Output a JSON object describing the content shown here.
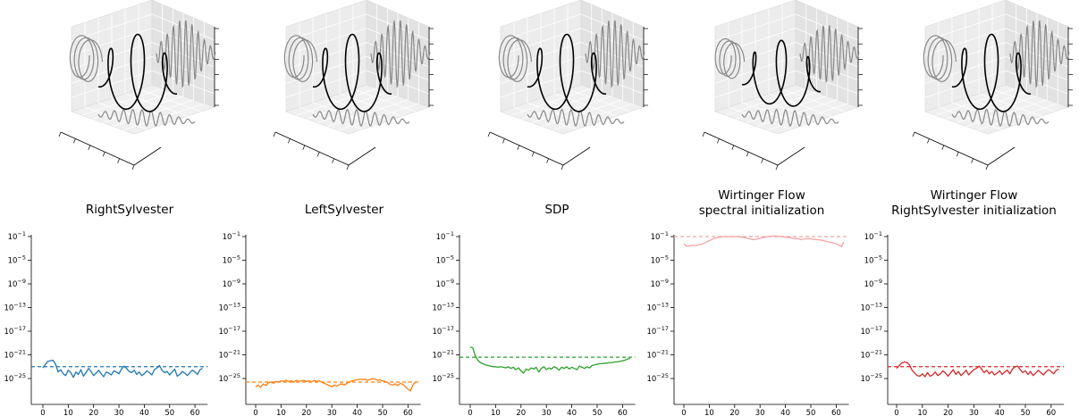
{
  "chart_data": [
    {
      "type": "line",
      "title_lines": [
        "RightSylvester"
      ],
      "color": "#1f77b4",
      "ylog": true,
      "ylim_exp": [
        -27,
        -1
      ],
      "xlim": [
        -3,
        66
      ],
      "xticks": [
        0,
        10,
        20,
        30,
        40,
        50,
        60
      ],
      "ytick_labels": [
        "10^-1",
        "10^-5",
        "10^-9",
        "10^-13",
        "10^-17",
        "10^-21",
        "10^-25"
      ],
      "reference_line_exp": -23.0,
      "series_log10": [
        -23.2,
        -22.6,
        -22.1,
        -22.0,
        -21.9,
        -22.6,
        -23.9,
        -23.5,
        -24.2,
        -24.5,
        -23.6,
        -24.0,
        -24.8,
        -23.9,
        -24.3,
        -23.5,
        -24.6,
        -24.0,
        -23.3,
        -23.8,
        -24.5,
        -24.1,
        -23.6,
        -24.2,
        -24.7,
        -23.9,
        -24.1,
        -24.4,
        -23.7,
        -23.9,
        -24.2,
        -23.4,
        -22.9,
        -23.3,
        -23.8,
        -24.0,
        -23.6,
        -24.3,
        -23.9,
        -24.5,
        -24.2,
        -23.7,
        -24.0,
        -24.4,
        -23.5,
        -23.2,
        -22.8,
        -23.6,
        -24.0,
        -23.8,
        -24.4,
        -23.9,
        -23.4,
        -24.6,
        -24.3,
        -23.8,
        -24.1,
        -24.5,
        -24.0,
        -23.6,
        -23.9,
        -24.3,
        -23.5,
        -23.3
      ]
    },
    {
      "type": "line",
      "title_lines": [
        "LeftSylvester"
      ],
      "color": "#ff7f0e",
      "ylog": true,
      "ylim_exp": [
        -27,
        -1
      ],
      "xlim": [
        -3,
        66
      ],
      "xticks": [
        0,
        10,
        20,
        30,
        40,
        50,
        60
      ],
      "ytick_labels": [
        "10^-1",
        "10^-5",
        "10^-9",
        "10^-13",
        "10^-17",
        "10^-21",
        "10^-25"
      ],
      "reference_line_exp": -25.6,
      "series_log10": [
        -26.4,
        -26.1,
        -26.5,
        -25.9,
        -26.2,
        -25.7,
        -25.6,
        -25.8,
        -25.5,
        -25.6,
        -25.4,
        -25.5,
        -25.3,
        -25.5,
        -25.4,
        -25.6,
        -25.3,
        -25.5,
        -25.4,
        -25.3,
        -25.5,
        -25.4,
        -25.6,
        -25.3,
        -25.5,
        -25.4,
        -25.6,
        -25.8,
        -26.0,
        -26.2,
        -26.4,
        -26.1,
        -26.3,
        -26.0,
        -25.9,
        -26.1,
        -25.8,
        -25.6,
        -25.4,
        -25.3,
        -25.2,
        -25.1,
        -25.2,
        -25.1,
        -25.3,
        -25.2,
        -25.0,
        -25.1,
        -25.3,
        -25.2,
        -25.4,
        -25.5,
        -25.7,
        -26.0,
        -26.1,
        -25.9,
        -26.2,
        -25.8,
        -26.0,
        -26.4,
        -26.8,
        -27.1,
        -26.0,
        -25.6
      ]
    },
    {
      "type": "line",
      "title_lines": [
        "SDP"
      ],
      "color": "#2ca02c",
      "ylog": true,
      "ylim_exp": [
        -27,
        -1
      ],
      "xlim": [
        -3,
        66
      ],
      "xticks": [
        0,
        10,
        20,
        30,
        40,
        50,
        60
      ],
      "ytick_labels": [
        "10^-1",
        "10^-5",
        "10^-9",
        "10^-13",
        "10^-17",
        "10^-21",
        "10^-25"
      ],
      "reference_line_exp": -21.4,
      "series_log10": [
        -19.7,
        -19.8,
        -21.2,
        -21.9,
        -22.3,
        -22.5,
        -22.7,
        -22.8,
        -22.9,
        -23.0,
        -23.0,
        -23.1,
        -23.0,
        -23.1,
        -23.2,
        -23.0,
        -23.3,
        -23.1,
        -23.5,
        -23.2,
        -23.7,
        -24.1,
        -23.4,
        -23.6,
        -23.2,
        -23.4,
        -23.1,
        -23.9,
        -23.3,
        -23.0,
        -23.5,
        -23.2,
        -23.4,
        -23.0,
        -23.2,
        -23.6,
        -23.1,
        -23.3,
        -23.0,
        -23.4,
        -23.1,
        -23.3,
        -23.5,
        -22.9,
        -23.1,
        -23.3,
        -23.0,
        -23.2,
        -22.8,
        -22.7,
        -22.6,
        -22.5,
        -22.5,
        -22.4,
        -22.4,
        -22.3,
        -22.3,
        -22.2,
        -22.2,
        -22.1,
        -22.0,
        -21.9,
        -21.7,
        -21.6
      ]
    },
    {
      "type": "line",
      "title_lines": [
        "Wirtinger Flow",
        "spectral initialization"
      ],
      "color": "#f4a3a3",
      "ylog": true,
      "ylim_exp": [
        -27,
        -1
      ],
      "xlim": [
        -3,
        66
      ],
      "xticks": [
        0,
        10,
        20,
        30,
        40,
        50,
        60
      ],
      "ytick_labels": [
        "10^-1",
        "10^-5",
        "10^-9",
        "10^-13",
        "10^-17",
        "10^-21",
        "10^-25"
      ],
      "reference_line_exp": -1.0,
      "series_log10": [
        -2.2,
        -2.6,
        -2.6,
        -2.5,
        -2.5,
        -2.5,
        -2.4,
        -2.3,
        -2.1,
        -1.9,
        -1.7,
        -1.5,
        -1.3,
        -1.2,
        -1.1,
        -1.05,
        -1.0,
        -1.0,
        -1.0,
        -1.0,
        -1.0,
        -1.0,
        -1.05,
        -1.1,
        -1.2,
        -1.3,
        -1.4,
        -1.5,
        -1.5,
        -1.4,
        -1.3,
        -1.2,
        -1.1,
        -1.0,
        -0.95,
        -0.9,
        -0.9,
        -0.95,
        -1.0,
        -1.05,
        -1.1,
        -1.15,
        -1.2,
        -1.3,
        -1.35,
        -1.4,
        -1.5,
        -1.45,
        -1.4,
        -1.35,
        -1.4,
        -1.45,
        -1.5,
        -1.55,
        -1.6,
        -1.7,
        -1.8,
        -1.9,
        -2.0,
        -2.1,
        -2.2,
        -2.4,
        -2.7,
        -1.9
      ]
    },
    {
      "type": "line",
      "title_lines": [
        "Wirtinger Flow",
        "RightSylvester initialization"
      ],
      "color": "#d62728",
      "ylog": true,
      "ylim_exp": [
        -27,
        -1
      ],
      "xlim": [
        -3,
        66
      ],
      "xticks": [
        0,
        10,
        20,
        30,
        40,
        50,
        60
      ],
      "ytick_labels": [
        "10^-1",
        "10^-5",
        "10^-9",
        "10^-13",
        "10^-17",
        "10^-21",
        "10^-25"
      ],
      "reference_line_exp": -23.0,
      "series_log10": [
        -23.3,
        -22.8,
        -22.4,
        -22.2,
        -22.3,
        -22.7,
        -23.6,
        -24.1,
        -24.5,
        -24.6,
        -24.2,
        -24.7,
        -24.0,
        -24.6,
        -24.4,
        -23.9,
        -24.5,
        -24.2,
        -23.7,
        -24.1,
        -24.6,
        -24.0,
        -23.5,
        -24.3,
        -23.8,
        -24.5,
        -24.1,
        -23.6,
        -24.4,
        -23.9,
        -23.5,
        -23.3,
        -22.9,
        -23.4,
        -24.0,
        -23.6,
        -24.2,
        -23.8,
        -24.4,
        -24.1,
        -23.7,
        -24.3,
        -23.9,
        -23.6,
        -24.2,
        -23.4,
        -23.0,
        -22.9,
        -23.5,
        -24.0,
        -23.7,
        -24.3,
        -23.8,
        -24.5,
        -24.1,
        -23.6,
        -24.0,
        -24.4,
        -23.9,
        -23.5,
        -23.8,
        -24.2,
        -23.6,
        -23.4
      ]
    }
  ]
}
